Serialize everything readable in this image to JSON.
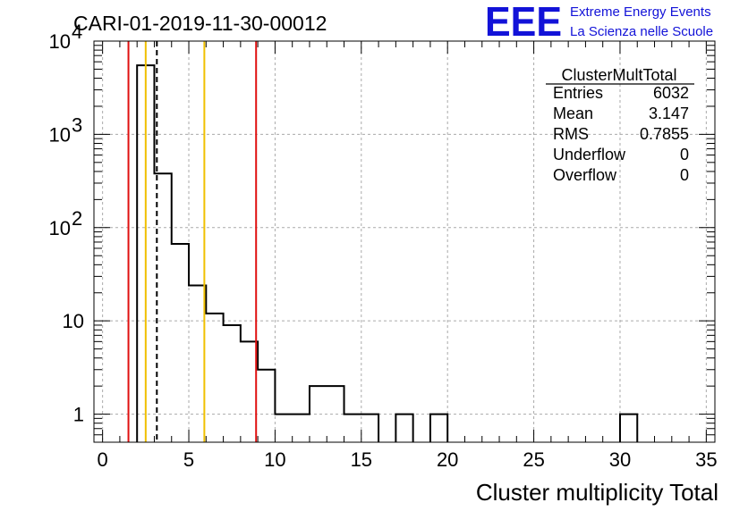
{
  "title": "CARI-01-2019-11-30-00012",
  "logo": {
    "mark": "EEE",
    "line1": "Extreme Energy Events",
    "line2": "La Scienza nelle Scuole"
  },
  "stats": {
    "name": "ClusterMultTotal",
    "rows": [
      {
        "label": "Entries",
        "value": "6032"
      },
      {
        "label": "Mean",
        "value": "3.147"
      },
      {
        "label": "RMS",
        "value": "0.7855"
      },
      {
        "label": "Underflow",
        "value": "0"
      },
      {
        "label": "Overflow",
        "value": "0"
      }
    ]
  },
  "colors": {
    "red_line": "#e01010",
    "yellow_line": "#f0c000",
    "histogram": "#000000",
    "grid": "#aaaaaa"
  },
  "chart_data": {
    "type": "histogram",
    "title": "CARI-01-2019-11-30-00012",
    "xlabel": "Cluster multiplicity Total",
    "ylabel": "",
    "xlim": [
      -0.5,
      35.5
    ],
    "ylim": [
      0.5,
      10000
    ],
    "yscale": "log",
    "grid": true,
    "bin_width": 1,
    "bins": [
      {
        "x": 2.5,
        "count": 5500
      },
      {
        "x": 3.5,
        "count": 380
      },
      {
        "x": 4.5,
        "count": 67
      },
      {
        "x": 5.5,
        "count": 24
      },
      {
        "x": 6.5,
        "count": 12
      },
      {
        "x": 7.5,
        "count": 9
      },
      {
        "x": 8.5,
        "count": 6
      },
      {
        "x": 9.5,
        "count": 3
      },
      {
        "x": 10.5,
        "count": 1
      },
      {
        "x": 11.5,
        "count": 1
      },
      {
        "x": 12.5,
        "count": 2
      },
      {
        "x": 13.5,
        "count": 2
      },
      {
        "x": 14.5,
        "count": 1
      },
      {
        "x": 15.5,
        "count": 1
      },
      {
        "x": 17.5,
        "count": 1
      },
      {
        "x": 19.5,
        "count": 1
      },
      {
        "x": 30.5,
        "count": 1
      }
    ],
    "x_ticks": [
      {
        "value": 0,
        "label": "0"
      },
      {
        "value": 5,
        "label": "5"
      },
      {
        "value": 10,
        "label": "10"
      },
      {
        "value": 15,
        "label": "15"
      },
      {
        "value": 20,
        "label": "20"
      },
      {
        "value": 25,
        "label": "25"
      },
      {
        "value": 30,
        "label": "30"
      },
      {
        "value": 35,
        "label": "35"
      }
    ],
    "y_ticks": [
      {
        "value": 1,
        "base": "1",
        "exp": ""
      },
      {
        "value": 10,
        "base": "10",
        "exp": ""
      },
      {
        "value": 100,
        "base": "10",
        "exp": "2"
      },
      {
        "value": 1000,
        "base": "10",
        "exp": "3"
      },
      {
        "value": 10000,
        "base": "10",
        "exp": "4"
      }
    ],
    "vlines": [
      {
        "name": "red-line-low",
        "x": 1.5,
        "color": "red",
        "dash": false
      },
      {
        "name": "yellow-line-low",
        "x": 2.5,
        "color": "yellow",
        "dash": false
      },
      {
        "name": "mean-dashed-line",
        "x": 3.147,
        "color": "black",
        "dash": true
      },
      {
        "name": "yellow-line-high",
        "x": 5.9,
        "color": "yellow",
        "dash": false
      },
      {
        "name": "red-line-high",
        "x": 8.9,
        "color": "red",
        "dash": false
      }
    ]
  }
}
